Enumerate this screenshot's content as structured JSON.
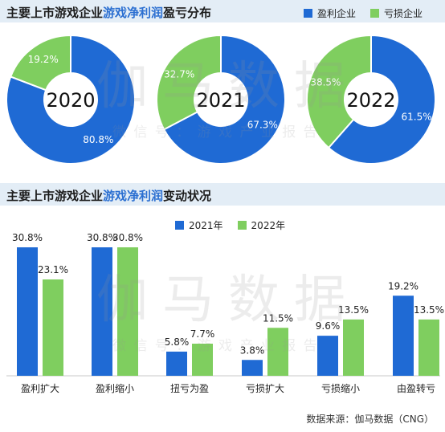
{
  "colors": {
    "profit": "#1f6ad4",
    "loss": "#7fce5f"
  },
  "section1": {
    "title_prefix": "主要上市游戏企业",
    "title_highlight": "游戏净利润",
    "title_suffix": "盈亏分布",
    "legend": [
      "盈利企业",
      "亏损企业"
    ]
  },
  "section2": {
    "title_prefix": "主要上市游戏企业",
    "title_highlight": "游戏净利润",
    "title_suffix": "变动状况",
    "legend": [
      "2021年",
      "2022年"
    ]
  },
  "watermark": {
    "main": "伽马数据",
    "sub": "微 信 号 ： 游 戏 产 业 报 告"
  },
  "footer": "数据来源：伽马数据（CNG）",
  "chart_data": [
    {
      "type": "pie",
      "title": "2020",
      "slices": [
        {
          "label": "盈利企业",
          "value": 80.8,
          "text": "80.8%"
        },
        {
          "label": "亏损企业",
          "value": 19.2,
          "text": "19.2%"
        }
      ]
    },
    {
      "type": "pie",
      "title": "2021",
      "slices": [
        {
          "label": "盈利企业",
          "value": 67.3,
          "text": "67.3%"
        },
        {
          "label": "亏损企业",
          "value": 32.7,
          "text": "32.7%"
        }
      ]
    },
    {
      "type": "pie",
      "title": "2022",
      "slices": [
        {
          "label": "盈利企业",
          "value": 61.5,
          "text": "61.5%"
        },
        {
          "label": "亏损企业",
          "value": 38.5,
          "text": "38.5%"
        }
      ]
    },
    {
      "type": "bar",
      "categories": [
        "盈利扩大",
        "盈利缩小",
        "扭亏为盈",
        "亏损扩大",
        "亏损缩小",
        "由盈转亏"
      ],
      "series": [
        {
          "name": "2021年",
          "values": [
            30.8,
            30.8,
            5.8,
            3.8,
            9.6,
            19.2
          ],
          "labels": [
            "30.8%",
            "30.8%",
            "5.8%",
            "3.8%",
            "9.6%",
            "19.2%"
          ]
        },
        {
          "name": "2022年",
          "values": [
            23.1,
            30.8,
            7.7,
            11.5,
            13.5,
            13.5
          ],
          "labels": [
            "23.1%",
            "30.8%",
            "7.7%",
            "11.5%",
            "13.5%",
            "13.5%"
          ]
        }
      ],
      "ylim": [
        0,
        35
      ]
    }
  ]
}
